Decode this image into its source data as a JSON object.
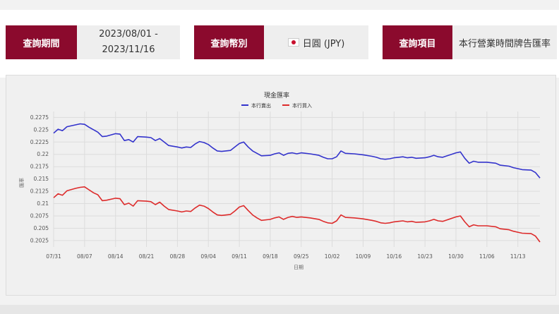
{
  "filters": {
    "period": {
      "label": "查詢期間",
      "start": "2023/08/01 -",
      "end": "2023/11/16"
    },
    "currency": {
      "label": "查詢幣別",
      "value": "日圓 (JPY)"
    },
    "item": {
      "label": "查詢項目",
      "value": "本行營業時間牌告匯率"
    }
  },
  "chart_data": {
    "type": "line",
    "title": "現金匯率",
    "xlabel": "日期",
    "ylabel": "匯率",
    "x_ticks": [
      "07/31",
      "08/07",
      "08/14",
      "08/21",
      "08/28",
      "09/04",
      "09/11",
      "09/18",
      "09/25",
      "10/02",
      "10/09",
      "10/16",
      "10/23",
      "10/30",
      "11/06",
      "11/13"
    ],
    "y_ticks": [
      0.2025,
      0.205,
      0.2075,
      0.21,
      0.2125,
      0.215,
      0.2175,
      0.22,
      0.2225,
      0.225,
      0.2275
    ],
    "xlim": [
      0,
      110
    ],
    "ylim": [
      0.2012,
      0.2287
    ],
    "grid": true,
    "legend_position": "top",
    "series": [
      {
        "name": "本行賣出",
        "color": "#3333cc",
        "points": [
          [
            0,
            0.2243
          ],
          [
            1,
            0.2251
          ],
          [
            2,
            0.2248
          ],
          [
            3,
            0.2256
          ],
          [
            5,
            0.226
          ],
          [
            6,
            0.2262
          ],
          [
            7,
            0.2261
          ],
          [
            8,
            0.2255
          ],
          [
            9,
            0.225
          ],
          [
            10,
            0.2245
          ],
          [
            11,
            0.2236
          ],
          [
            12,
            0.2237
          ],
          [
            14,
            0.2242
          ],
          [
            15,
            0.2241
          ],
          [
            16,
            0.2228
          ],
          [
            17,
            0.223
          ],
          [
            18,
            0.2225
          ],
          [
            19,
            0.2236
          ],
          [
            21,
            0.2235
          ],
          [
            22,
            0.2234
          ],
          [
            23,
            0.2228
          ],
          [
            24,
            0.2232
          ],
          [
            25,
            0.2225
          ],
          [
            26,
            0.2218
          ],
          [
            28,
            0.2215
          ],
          [
            29,
            0.2213
          ],
          [
            30,
            0.2215
          ],
          [
            31,
            0.2214
          ],
          [
            32,
            0.2221
          ],
          [
            33,
            0.2226
          ],
          [
            34,
            0.2224
          ],
          [
            35,
            0.222
          ],
          [
            36,
            0.2213
          ],
          [
            37,
            0.2207
          ],
          [
            38,
            0.2206
          ],
          [
            40,
            0.2208
          ],
          [
            41,
            0.2215
          ],
          [
            42,
            0.2222
          ],
          [
            43,
            0.2225
          ],
          [
            44,
            0.2215
          ],
          [
            45,
            0.2207
          ],
          [
            46,
            0.2202
          ],
          [
            47,
            0.2197
          ],
          [
            49,
            0.2198
          ],
          [
            50,
            0.2201
          ],
          [
            51,
            0.2203
          ],
          [
            52,
            0.2198
          ],
          [
            53,
            0.2202
          ],
          [
            54,
            0.2203
          ],
          [
            55,
            0.2201
          ],
          [
            56,
            0.2203
          ],
          [
            58,
            0.2201
          ],
          [
            60,
            0.2198
          ],
          [
            61,
            0.2194
          ],
          [
            62,
            0.2191
          ],
          [
            63,
            0.2191
          ],
          [
            64,
            0.2195
          ],
          [
            65,
            0.2207
          ],
          [
            66,
            0.2202
          ],
          [
            68,
            0.2201
          ],
          [
            70,
            0.2199
          ],
          [
            72,
            0.2196
          ],
          [
            73,
            0.2194
          ],
          [
            74,
            0.2191
          ],
          [
            75,
            0.219
          ],
          [
            76,
            0.2191
          ],
          [
            77,
            0.2193
          ],
          [
            78,
            0.2194
          ],
          [
            79,
            0.2195
          ],
          [
            80,
            0.2193
          ],
          [
            81,
            0.2194
          ],
          [
            82,
            0.2192
          ],
          [
            84,
            0.2193
          ],
          [
            85,
            0.2195
          ],
          [
            86,
            0.2198
          ],
          [
            87,
            0.2195
          ],
          [
            88,
            0.2194
          ],
          [
            89,
            0.2197
          ],
          [
            91,
            0.2203
          ],
          [
            92,
            0.2205
          ],
          [
            93,
            0.2192
          ],
          [
            94,
            0.2182
          ],
          [
            95,
            0.2186
          ],
          [
            96,
            0.2184
          ],
          [
            98,
            0.2184
          ],
          [
            100,
            0.2182
          ],
          [
            101,
            0.2178
          ],
          [
            103,
            0.2176
          ],
          [
            104,
            0.2173
          ],
          [
            105,
            0.2171
          ],
          [
            106,
            0.2169
          ],
          [
            108,
            0.2168
          ],
          [
            109,
            0.2163
          ],
          [
            110,
            0.2152
          ]
        ]
      },
      {
        "name": "本行買入",
        "color": "#dd2b2b",
        "points": [
          [
            0,
            0.2112
          ],
          [
            1,
            0.212
          ],
          [
            2,
            0.2117
          ],
          [
            3,
            0.2126
          ],
          [
            5,
            0.2131
          ],
          [
            6,
            0.2133
          ],
          [
            7,
            0.2134
          ],
          [
            8,
            0.2128
          ],
          [
            9,
            0.2122
          ],
          [
            10,
            0.2118
          ],
          [
            11,
            0.2106
          ],
          [
            12,
            0.2107
          ],
          [
            14,
            0.2111
          ],
          [
            15,
            0.211
          ],
          [
            16,
            0.2098
          ],
          [
            17,
            0.2101
          ],
          [
            18,
            0.2095
          ],
          [
            19,
            0.2106
          ],
          [
            21,
            0.2105
          ],
          [
            22,
            0.2104
          ],
          [
            23,
            0.2098
          ],
          [
            24,
            0.2103
          ],
          [
            25,
            0.2095
          ],
          [
            26,
            0.2088
          ],
          [
            28,
            0.2085
          ],
          [
            29,
            0.2083
          ],
          [
            30,
            0.2085
          ],
          [
            31,
            0.2084
          ],
          [
            32,
            0.2091
          ],
          [
            33,
            0.2097
          ],
          [
            34,
            0.2095
          ],
          [
            35,
            0.209
          ],
          [
            36,
            0.2083
          ],
          [
            37,
            0.2077
          ],
          [
            38,
            0.2076
          ],
          [
            40,
            0.2078
          ],
          [
            41,
            0.2085
          ],
          [
            42,
            0.2093
          ],
          [
            43,
            0.2096
          ],
          [
            44,
            0.2086
          ],
          [
            45,
            0.2077
          ],
          [
            46,
            0.2071
          ],
          [
            47,
            0.2066
          ],
          [
            49,
            0.2068
          ],
          [
            50,
            0.2071
          ],
          [
            51,
            0.2073
          ],
          [
            52,
            0.2068
          ],
          [
            53,
            0.2072
          ],
          [
            54,
            0.2074
          ],
          [
            55,
            0.2072
          ],
          [
            56,
            0.2073
          ],
          [
            58,
            0.2071
          ],
          [
            60,
            0.2068
          ],
          [
            61,
            0.2064
          ],
          [
            62,
            0.2061
          ],
          [
            63,
            0.206
          ],
          [
            64,
            0.2065
          ],
          [
            65,
            0.2077
          ],
          [
            66,
            0.2072
          ],
          [
            68,
            0.2071
          ],
          [
            70,
            0.2069
          ],
          [
            72,
            0.2066
          ],
          [
            73,
            0.2064
          ],
          [
            74,
            0.2061
          ],
          [
            75,
            0.206
          ],
          [
            76,
            0.2061
          ],
          [
            77,
            0.2063
          ],
          [
            78,
            0.2064
          ],
          [
            79,
            0.2065
          ],
          [
            80,
            0.2063
          ],
          [
            81,
            0.2064
          ],
          [
            82,
            0.2062
          ],
          [
            84,
            0.2063
          ],
          [
            85,
            0.2065
          ],
          [
            86,
            0.2068
          ],
          [
            87,
            0.2065
          ],
          [
            88,
            0.2064
          ],
          [
            89,
            0.2067
          ],
          [
            91,
            0.2073
          ],
          [
            92,
            0.2075
          ],
          [
            93,
            0.2063
          ],
          [
            94,
            0.2053
          ],
          [
            95,
            0.2057
          ],
          [
            96,
            0.2055
          ],
          [
            98,
            0.2055
          ],
          [
            100,
            0.2053
          ],
          [
            101,
            0.2049
          ],
          [
            103,
            0.2047
          ],
          [
            104,
            0.2044
          ],
          [
            105,
            0.2042
          ],
          [
            106,
            0.204
          ],
          [
            108,
            0.2039
          ],
          [
            109,
            0.2034
          ],
          [
            110,
            0.2022
          ]
        ]
      }
    ]
  }
}
